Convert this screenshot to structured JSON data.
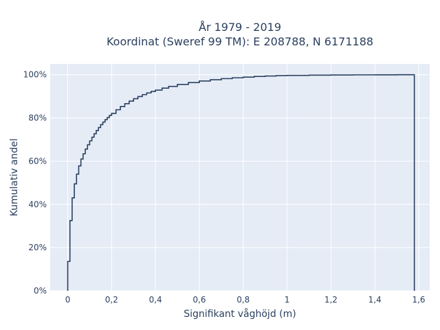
{
  "chart_data": {
    "type": "line",
    "line_shape": "step",
    "title_line1": "År 1979 - 2019",
    "title_line2": "Koordinat (Sweref 99 TM): E 208788, N 6171188",
    "xlabel": "Signifikant våghöjd (m)",
    "ylabel": "Kumulativ andel",
    "xlim": [
      -0.08,
      1.65
    ],
    "ylim": [
      0,
      1.05
    ],
    "x_ticks": [
      0,
      0.2,
      0.4,
      0.6,
      0.8,
      1,
      1.2,
      1.4,
      1.6
    ],
    "x_tick_labels": [
      "0",
      "0,2",
      "0,4",
      "0,6",
      "0,8",
      "1",
      "1,2",
      "1,4",
      "1,6"
    ],
    "y_ticks": [
      0,
      0.2,
      0.4,
      0.6,
      0.8,
      1
    ],
    "y_tick_labels": [
      "0%",
      "20%",
      "40%",
      "60%",
      "80%",
      "100%"
    ],
    "grid": true,
    "legend": "none",
    "line_color": "#2a3f5f",
    "plot_background": "#e5ecf6",
    "grid_color": "#ffffff",
    "series": [
      {
        "x": [
          0,
          0.01,
          0.02,
          0.03,
          0.04,
          0.05,
          0.06,
          0.07,
          0.08,
          0.09,
          0.1,
          0.11,
          0.12,
          0.13,
          0.14,
          0.15,
          0.16,
          0.17,
          0.18,
          0.19,
          0.2,
          0.22,
          0.24,
          0.26,
          0.28,
          0.3,
          0.32,
          0.34,
          0.36,
          0.38,
          0.4,
          0.43,
          0.46,
          0.5,
          0.55,
          0.6,
          0.65,
          0.7,
          0.75,
          0.8,
          0.85,
          0.9,
          0.95,
          1.0,
          1.1,
          1.2,
          1.3,
          1.4,
          1.5,
          1.58,
          1.58
        ],
        "y": [
          0.136,
          0.325,
          0.43,
          0.495,
          0.54,
          0.578,
          0.61,
          0.634,
          0.656,
          0.676,
          0.694,
          0.711,
          0.727,
          0.742,
          0.756,
          0.769,
          0.781,
          0.792,
          0.802,
          0.812,
          0.821,
          0.838,
          0.853,
          0.866,
          0.878,
          0.889,
          0.899,
          0.908,
          0.916,
          0.923,
          0.929,
          0.938,
          0.946,
          0.955,
          0.964,
          0.971,
          0.977,
          0.982,
          0.986,
          0.989,
          0.992,
          0.994,
          0.996,
          0.997,
          0.998,
          0.999,
          0.9995,
          0.9998,
          1.0,
          1.0,
          0
        ]
      }
    ]
  }
}
